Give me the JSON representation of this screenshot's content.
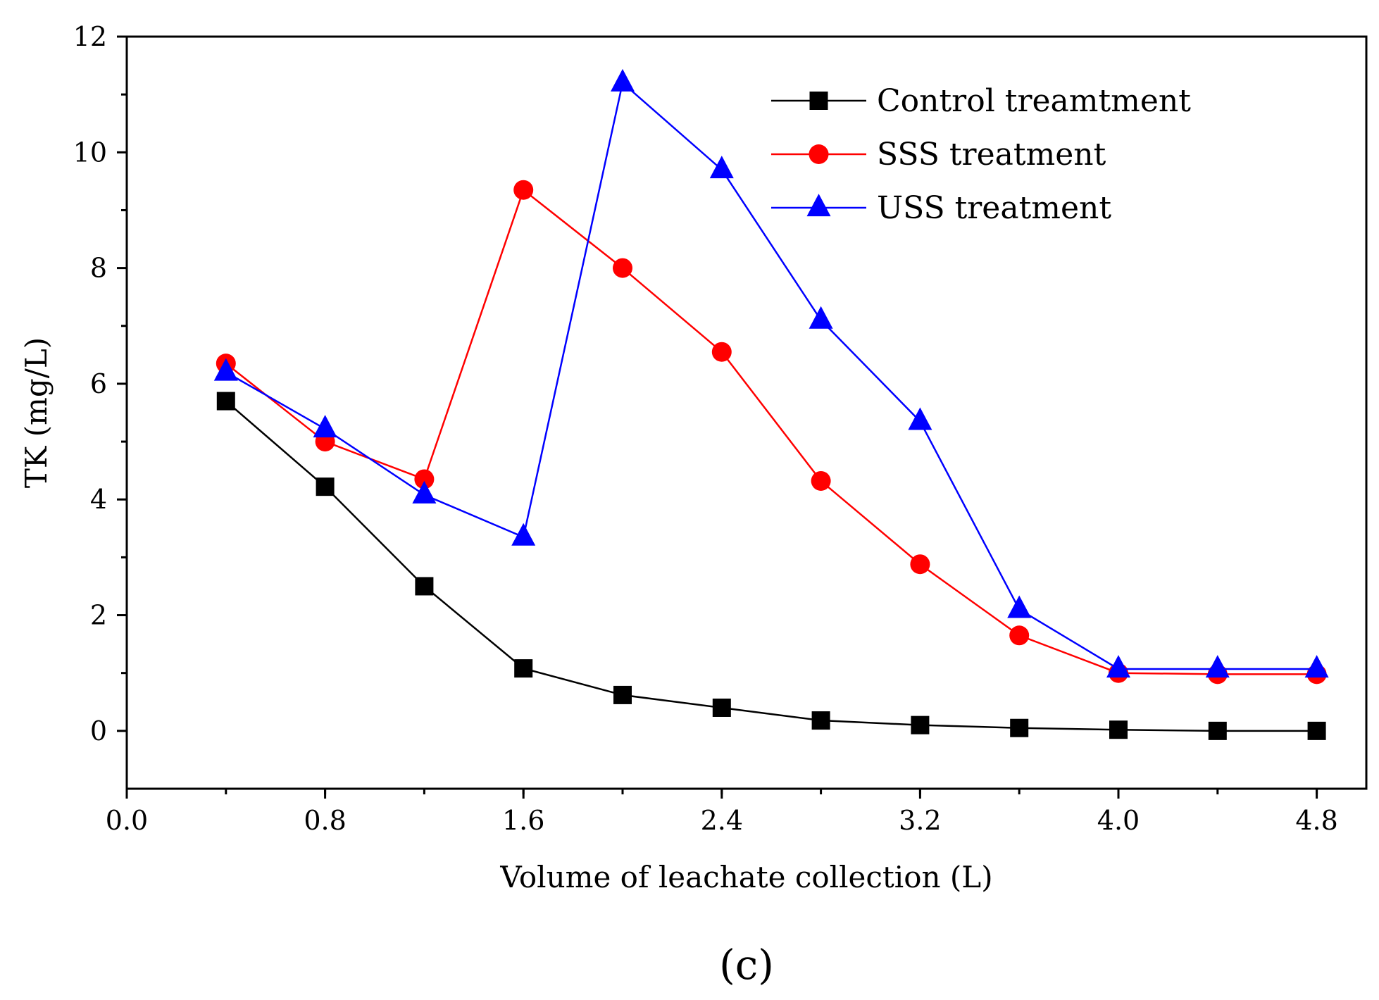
{
  "chart_data": {
    "type": "line",
    "title": "",
    "xlabel": "Volume of leachate collection (L)",
    "ylabel": "TK (mg/L)",
    "xlim": [
      0.0,
      5.0
    ],
    "ylim": [
      -1.0,
      12.0
    ],
    "x_ticks": [
      "0.0",
      "0.8",
      "1.6",
      "2.4",
      "3.2",
      "4.0",
      "4.8"
    ],
    "y_ticks": [
      "0",
      "2",
      "4",
      "6",
      "8",
      "10",
      "12"
    ],
    "grid": false,
    "legend_position": "top-right",
    "x": [
      0.4,
      0.8,
      1.2,
      1.6,
      2.0,
      2.4,
      2.8,
      3.2,
      3.6,
      4.0,
      4.4,
      4.8
    ],
    "series": [
      {
        "name": "Control treamtment",
        "color": "#000000",
        "marker": "square",
        "values": [
          5.7,
          4.22,
          2.5,
          1.08,
          0.62,
          0.4,
          0.18,
          0.1,
          0.05,
          0.02,
          0.0,
          0.0
        ]
      },
      {
        "name": "SSS treatment",
        "color": "#ff0000",
        "marker": "circle",
        "values": [
          6.35,
          5.0,
          4.35,
          9.35,
          8.0,
          6.55,
          4.32,
          2.88,
          1.65,
          1.0,
          0.98,
          0.98
        ]
      },
      {
        "name": "USS treatment",
        "color": "#0000ff",
        "marker": "triangle",
        "values": [
          6.2,
          5.22,
          4.08,
          3.35,
          11.2,
          9.7,
          7.1,
          5.35,
          2.1,
          1.07,
          1.07,
          1.07
        ]
      }
    ],
    "panel_label": "(c)"
  }
}
